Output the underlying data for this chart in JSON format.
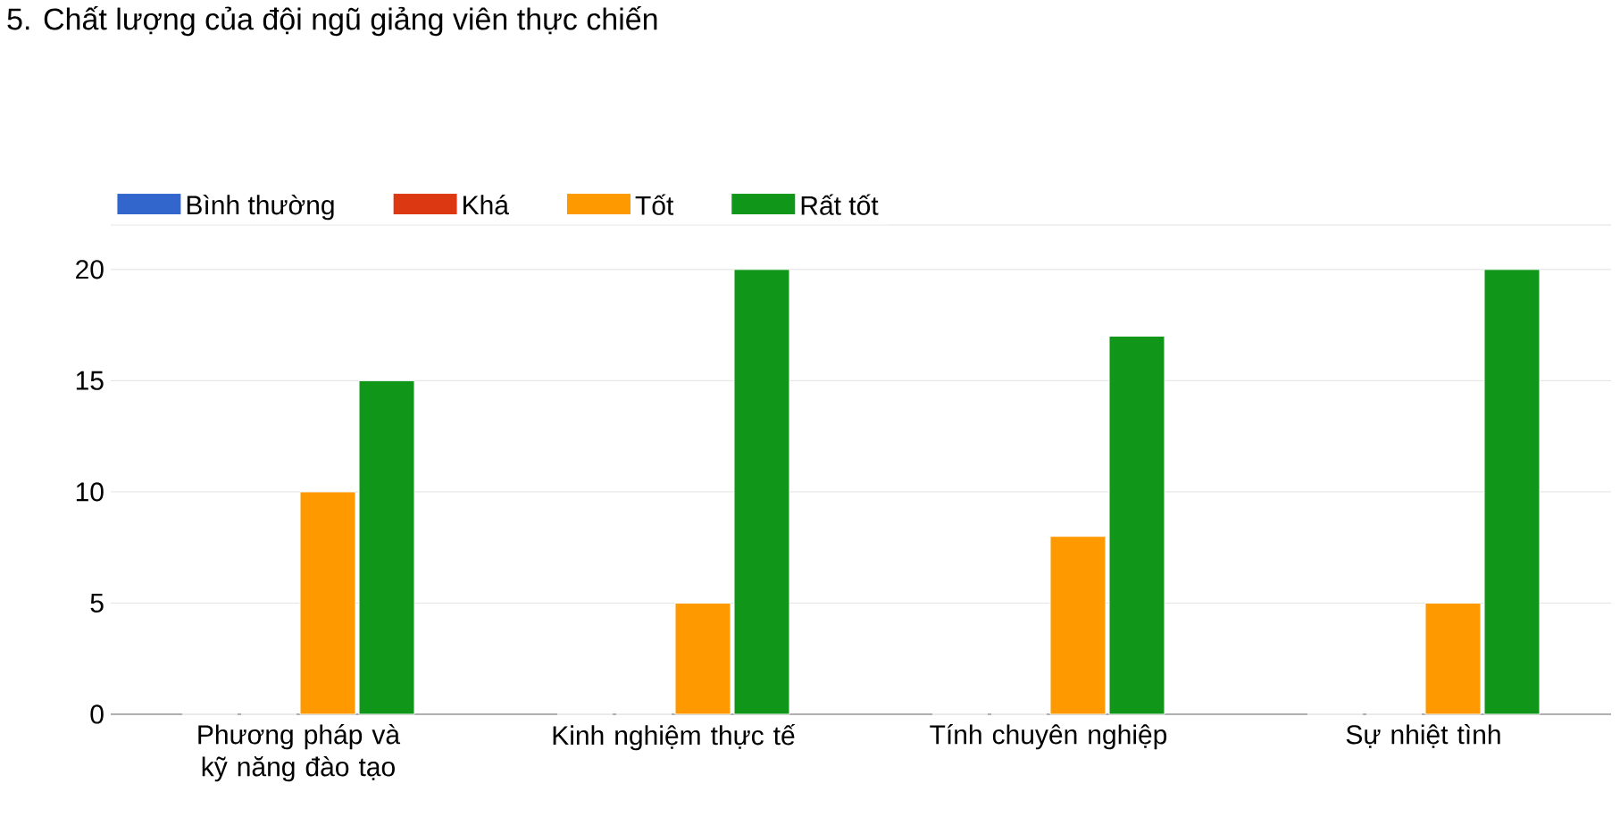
{
  "chart_data": {
    "type": "bar",
    "title": "5. Chất lượng của đội ngũ giảng viên thực chiến",
    "categories": [
      "Phương pháp và kỹ năng đào tạo",
      "Kinh nghiệm thực tế",
      "Tính chuyên nghiệp",
      "Sự nhiệt tình"
    ],
    "series": [
      {
        "name": "Bình thường",
        "color": "#3366cc",
        "values": [
          0,
          0,
          0,
          0
        ]
      },
      {
        "name": "Khá",
        "color": "#dc3912",
        "values": [
          0,
          0,
          0,
          0
        ]
      },
      {
        "name": "Tốt",
        "color": "#ff9900",
        "values": [
          10,
          5,
          8,
          5
        ]
      },
      {
        "name": "Rất tốt",
        "color": "#109618",
        "values": [
          15,
          20,
          17,
          20
        ]
      }
    ],
    "ylim": [
      0,
      22
    ],
    "yticks": [
      0,
      5,
      10,
      15,
      20,
      {
        "value": 22,
        "label": null
      }
    ],
    "grid": "y",
    "legend": "top left"
  }
}
